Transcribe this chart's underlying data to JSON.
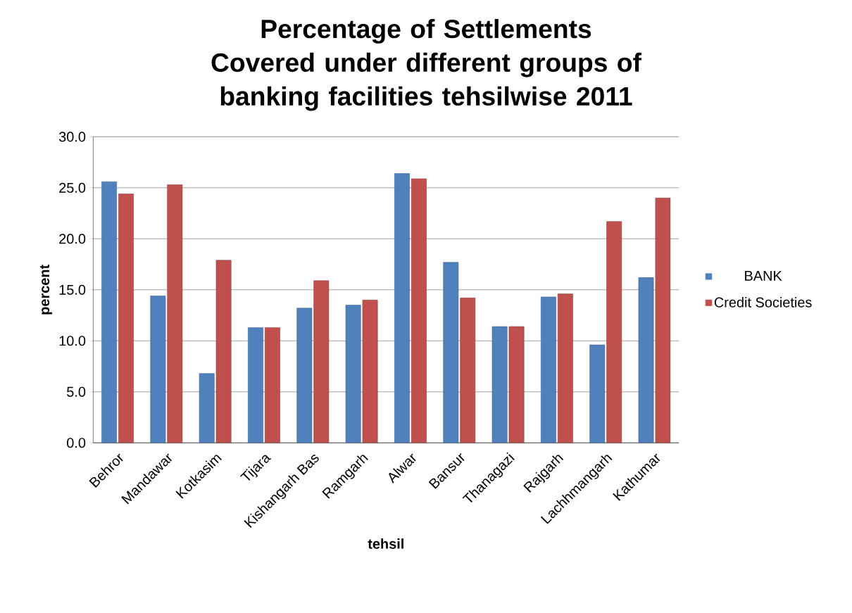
{
  "chart_data": {
    "type": "bar",
    "title": "Percentage of Settlements Covered under different groups  of banking facilities tehsilwise 2011",
    "xlabel": "tehsil",
    "ylabel": "percent",
    "categories": [
      "Behror",
      "Mandawar",
      "Kotkasim",
      "Tijara",
      "Kishangarh Bas",
      "Ramgarh",
      "Alwar",
      "Bansur",
      "Thanagazi",
      "Rajgarh",
      "Lachhmangarh",
      "Kathumar"
    ],
    "series": [
      {
        "name": "BANK",
        "color": "#4f81bd",
        "values": [
          25.6,
          14.4,
          6.8,
          11.3,
          13.2,
          13.5,
          26.4,
          17.7,
          11.4,
          14.3,
          9.6,
          16.2
        ]
      },
      {
        "name": "Credit Societies",
        "color": "#c0504d",
        "values": [
          24.4,
          25.3,
          17.9,
          11.3,
          15.9,
          14.0,
          25.9,
          14.2,
          11.4,
          14.6,
          21.7,
          24.0
        ]
      }
    ],
    "ylim": [
      0,
      30
    ],
    "yticks": [
      {
        "value": 0,
        "label": "0.0"
      },
      {
        "value": 5,
        "label": "5.0"
      },
      {
        "value": 10,
        "label": "10.0"
      },
      {
        "value": 15,
        "label": "15.0"
      },
      {
        "value": 20,
        "label": "20.0"
      },
      {
        "value": 25,
        "label": "25.0"
      },
      {
        "value": 30,
        "label": "30.0"
      }
    ],
    "grid": "y",
    "legend": "right"
  }
}
